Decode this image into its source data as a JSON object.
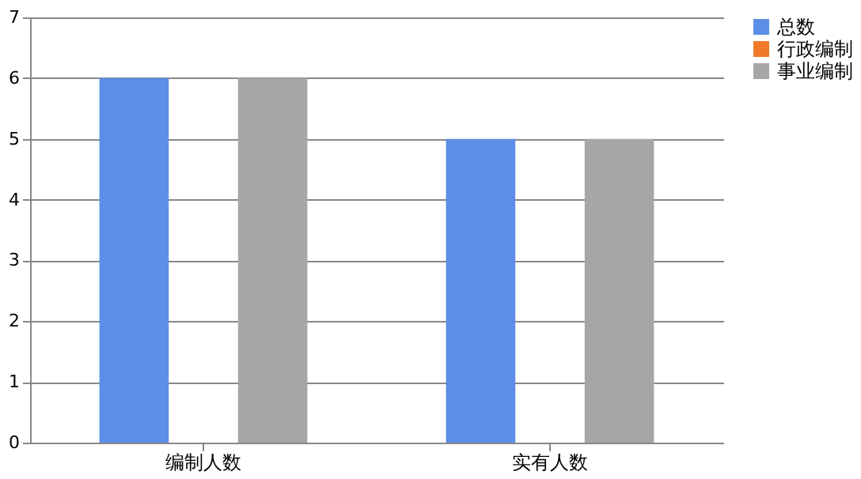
{
  "chart_data": {
    "type": "bar",
    "categories": [
      "编制人数",
      "实有人数"
    ],
    "series": [
      {
        "name": "总数",
        "color": "#5b8ee6",
        "values": [
          6,
          5
        ]
      },
      {
        "name": "行政编制",
        "color": "#f07a28",
        "values": [
          0,
          0
        ]
      },
      {
        "name": "事业编制",
        "color": "#a6a6a6",
        "values": [
          6,
          5
        ]
      }
    ],
    "ylim": [
      0,
      7
    ],
    "yticks": [
      0,
      1,
      2,
      3,
      4,
      5,
      6,
      7
    ],
    "grid": "y",
    "legend": "right"
  }
}
